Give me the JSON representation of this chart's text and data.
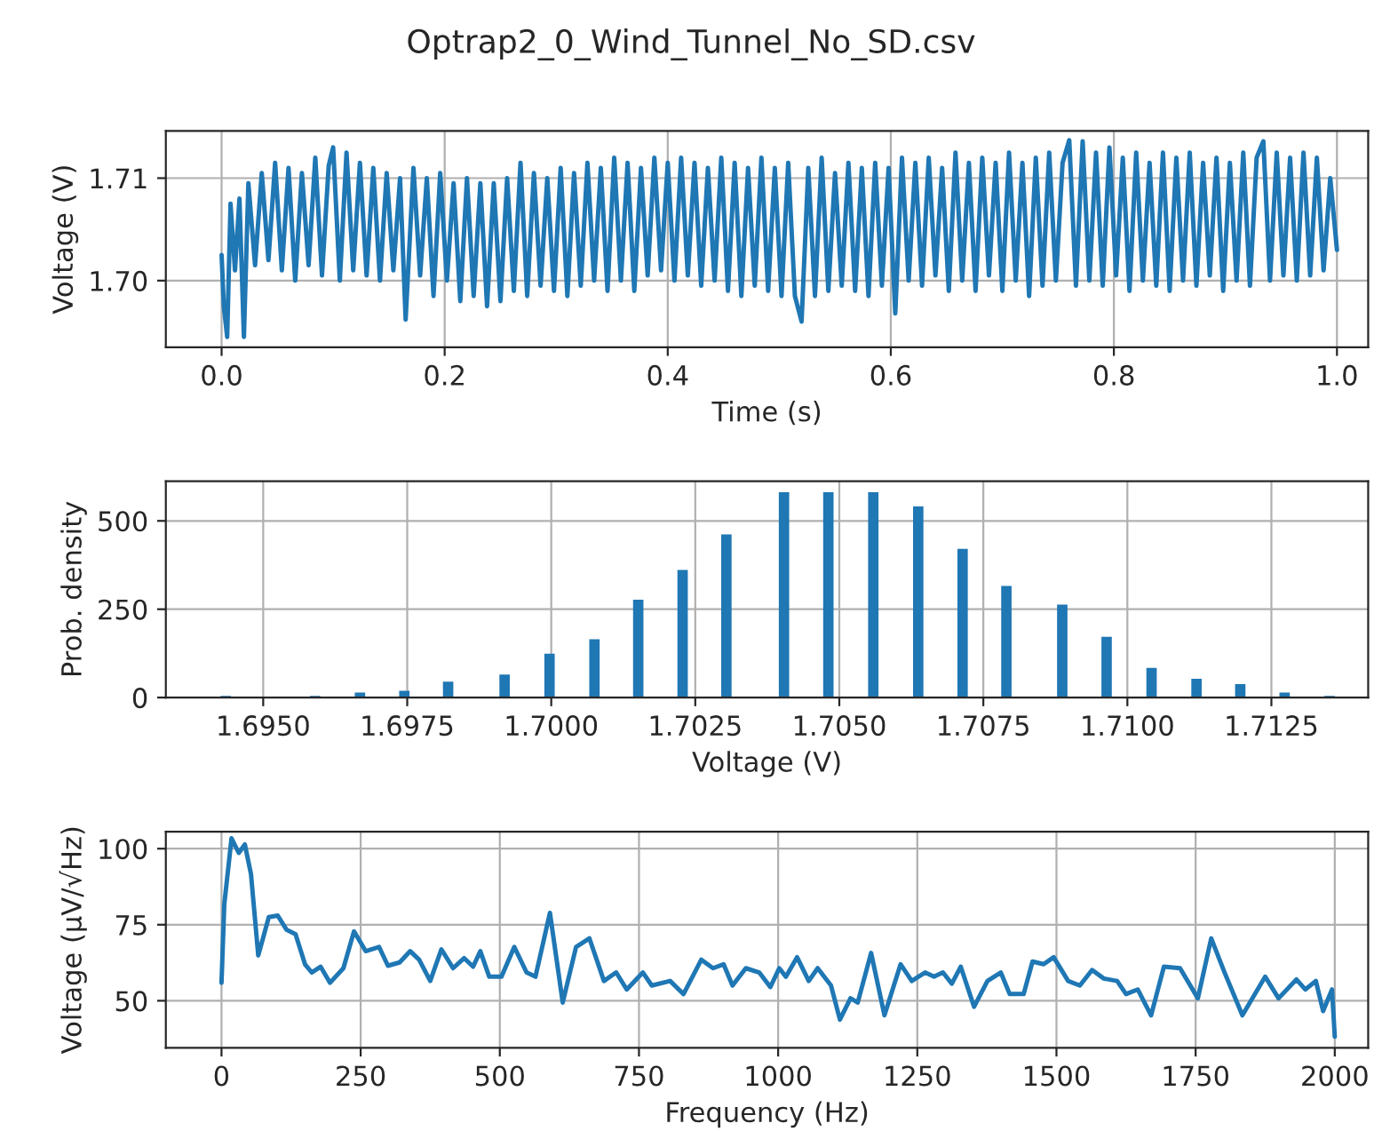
{
  "chart_data": [
    {
      "type": "line",
      "title": "Optrap2_0_Wind_Tunnel_No_SD.csv",
      "xlabel": "Time (s)",
      "ylabel": "Voltage (V)",
      "grid": true,
      "xlim": [
        -0.05,
        1.028
      ],
      "ylim": [
        1.6935,
        1.7146
      ],
      "xticks": [
        {
          "value": 0,
          "label": "0.0"
        },
        {
          "value": 0.2,
          "label": "0.2"
        },
        {
          "value": 0.4,
          "label": "0.4"
        },
        {
          "value": 0.6,
          "label": "0.6"
        },
        {
          "value": 0.8,
          "label": "0.8"
        },
        {
          "value": 1.0,
          "label": "1.0"
        }
      ],
      "yticks": [
        {
          "value": 1.7,
          "label": "1.70"
        },
        {
          "value": 1.71,
          "label": "1.71"
        }
      ],
      "series": [
        {
          "color": "#1f77b4",
          "x": [
            0,
            0.002,
            0.005,
            0.008,
            0.012,
            0.016,
            0.02,
            0.024,
            0.03,
            0.036,
            0.042,
            0.048,
            0.054,
            0.06,
            0.066,
            0.072,
            0.078,
            0.084,
            0.09,
            0.096,
            0.1,
            0.106,
            0.112,
            0.118,
            0.124,
            0.13,
            0.136,
            0.142,
            0.148,
            0.154,
            0.16,
            0.165,
            0.172,
            0.178,
            0.184,
            0.19,
            0.196,
            0.202,
            0.208,
            0.214,
            0.22,
            0.226,
            0.232,
            0.238,
            0.244,
            0.25,
            0.256,
            0.262,
            0.268,
            0.274,
            0.28,
            0.286,
            0.292,
            0.298,
            0.304,
            0.31,
            0.316,
            0.322,
            0.328,
            0.334,
            0.34,
            0.346,
            0.352,
            0.358,
            0.364,
            0.37,
            0.376,
            0.382,
            0.388,
            0.394,
            0.4,
            0.406,
            0.412,
            0.418,
            0.424,
            0.43,
            0.436,
            0.442,
            0.448,
            0.454,
            0.46,
            0.466,
            0.472,
            0.478,
            0.484,
            0.49,
            0.496,
            0.502,
            0.508,
            0.514,
            0.52,
            0.526,
            0.532,
            0.538,
            0.544,
            0.55,
            0.556,
            0.562,
            0.568,
            0.574,
            0.58,
            0.586,
            0.592,
            0.598,
            0.604,
            0.61,
            0.616,
            0.622,
            0.628,
            0.634,
            0.64,
            0.646,
            0.652,
            0.658,
            0.664,
            0.67,
            0.676,
            0.682,
            0.688,
            0.694,
            0.7,
            0.706,
            0.712,
            0.718,
            0.724,
            0.73,
            0.736,
            0.742,
            0.748,
            0.754,
            0.76,
            0.766,
            0.772,
            0.778,
            0.784,
            0.79,
            0.796,
            0.802,
            0.808,
            0.814,
            0.82,
            0.826,
            0.832,
            0.838,
            0.844,
            0.85,
            0.856,
            0.862,
            0.868,
            0.874,
            0.88,
            0.886,
            0.892,
            0.898,
            0.904,
            0.91,
            0.916,
            0.922,
            0.928,
            0.934,
            0.94,
            0.946,
            0.952,
            0.958,
            0.964,
            0.97,
            0.976,
            0.982,
            0.988,
            0.994,
            1.0
          ],
          "values": [
            1.7025,
            1.6975,
            1.6945,
            1.7075,
            1.701,
            1.708,
            1.6945,
            1.7095,
            1.7015,
            1.7105,
            1.702,
            1.7115,
            1.701,
            1.711,
            1.7,
            1.7105,
            1.7015,
            1.712,
            1.7005,
            1.7112,
            1.713,
            1.7,
            1.7125,
            1.701,
            1.7115,
            1.7005,
            1.711,
            1.7,
            1.7105,
            1.701,
            1.71,
            1.6962,
            1.711,
            1.7005,
            1.71,
            1.6985,
            1.7105,
            1.7,
            1.7095,
            1.698,
            1.71,
            1.6985,
            1.7095,
            1.6975,
            1.7095,
            1.698,
            1.71,
            1.699,
            1.7115,
            1.6985,
            1.7105,
            1.6995,
            1.71,
            1.699,
            1.711,
            1.6985,
            1.7105,
            1.6995,
            1.7115,
            1.7,
            1.711,
            1.699,
            1.712,
            1.7,
            1.7115,
            1.699,
            1.711,
            1.7005,
            1.712,
            1.701,
            1.7115,
            1.7,
            1.712,
            1.7005,
            1.7115,
            1.6995,
            1.711,
            1.7,
            1.712,
            1.699,
            1.7115,
            1.6985,
            1.711,
            1.6995,
            1.712,
            1.699,
            1.711,
            1.6985,
            1.7115,
            1.6985,
            1.696,
            1.711,
            1.6985,
            1.712,
            1.699,
            1.7105,
            1.6995,
            1.7115,
            1.699,
            1.711,
            1.6985,
            1.7115,
            1.6995,
            1.711,
            1.6968,
            1.712,
            1.7,
            1.7115,
            1.6995,
            1.712,
            1.7005,
            1.711,
            1.699,
            1.7125,
            1.7,
            1.7115,
            1.699,
            1.712,
            1.7005,
            1.7115,
            1.699,
            1.7125,
            1.7,
            1.7115,
            1.6985,
            1.712,
            1.6995,
            1.7125,
            1.7,
            1.7115,
            1.7137,
            1.6995,
            1.7136,
            1.7,
            1.7125,
            1.6995,
            1.713,
            1.7005,
            1.712,
            1.699,
            1.7125,
            1.7,
            1.7115,
            1.6995,
            1.7125,
            1.699,
            1.712,
            1.7,
            1.7125,
            1.6995,
            1.7115,
            1.7005,
            1.712,
            1.699,
            1.7115,
            1.7,
            1.7125,
            1.6995,
            1.712,
            1.7136,
            1.7,
            1.7125,
            1.7005,
            1.712,
            1.7,
            1.7125,
            1.7005,
            1.712,
            1.701,
            1.71,
            1.703
          ]
        }
      ]
    },
    {
      "type": "histogram",
      "xlabel": "Voltage (V)",
      "ylabel": "Prob. density",
      "grid": true,
      "xlim": [
        1.69331,
        1.71418
      ],
      "ylim": [
        0,
        612
      ],
      "xticks": [
        {
          "value": 1.695,
          "label": "1.6950"
        },
        {
          "value": 1.6975,
          "label": "1.6975"
        },
        {
          "value": 1.7,
          "label": "1.7000"
        },
        {
          "value": 1.7025,
          "label": "1.7025"
        },
        {
          "value": 1.705,
          "label": "1.7050"
        },
        {
          "value": 1.7075,
          "label": "1.7075"
        },
        {
          "value": 1.71,
          "label": "1.7100"
        },
        {
          "value": 1.7125,
          "label": "1.7125"
        }
      ],
      "yticks": [
        0,
        250,
        500
      ],
      "color": "#1f77b4",
      "bins": [
        1.69426,
        1.69444,
        1.69581,
        1.69599,
        1.69659,
        1.69677,
        1.69736,
        1.69754,
        1.69812,
        1.6983,
        1.6991,
        1.69928,
        1.69988,
        1.70006,
        1.70066,
        1.70084,
        1.70142,
        1.7016,
        1.70219,
        1.70237,
        1.70295,
        1.70313,
        1.70395,
        1.70413,
        1.70472,
        1.7049,
        1.7055,
        1.70568,
        1.70628,
        1.70646,
        1.70705,
        1.70723,
        1.70781,
        1.70799,
        1.70878,
        1.70896,
        1.70955,
        1.70973,
        1.71033,
        1.71051,
        1.71111,
        1.71129,
        1.71187,
        1.71205,
        1.71264,
        1.71282,
        1.71342,
        1.7136
      ],
      "values": [
        5,
        0,
        5,
        0,
        14,
        0,
        19,
        0,
        45,
        0,
        65,
        0,
        124,
        0,
        165,
        0,
        277,
        0,
        361,
        0,
        462,
        0,
        581,
        0,
        581,
        0,
        581,
        0,
        541,
        0,
        421,
        0,
        316,
        0,
        263,
        0,
        172,
        0,
        84,
        0,
        53,
        0,
        38,
        0,
        14,
        0,
        5
      ]
    },
    {
      "type": "line",
      "xlabel": "Frequency (Hz)",
      "ylabel": "Voltage (μV/√Hz)",
      "grid": true,
      "xlim": [
        -100,
        2060
      ],
      "ylim": [
        34.5,
        105.6
      ],
      "xticks": [
        0,
        250,
        500,
        750,
        1000,
        1250,
        1500,
        1750,
        2000
      ],
      "yticks": [
        50,
        75,
        100
      ],
      "series": [
        {
          "color": "#1f77b4",
          "x": [
            0,
            5,
            18,
            31,
            42,
            53,
            66,
            85,
            101,
            117,
            133,
            150,
            162,
            178,
            195,
            219,
            238,
            259,
            283,
            299,
            320,
            339,
            355,
            375,
            395,
            416,
            436,
            452,
            465,
            481,
            503,
            526,
            548,
            564,
            590,
            613,
            637,
            661,
            687,
            709,
            728,
            757,
            773,
            806,
            830,
            862,
            883,
            902,
            918,
            942,
            966,
            986,
            1002,
            1014,
            1034,
            1055,
            1071,
            1095,
            1111,
            1130,
            1143,
            1167,
            1191,
            1220,
            1240,
            1264,
            1280,
            1296,
            1312,
            1328,
            1352,
            1376,
            1400,
            1416,
            1441,
            1457,
            1477,
            1495,
            1521,
            1542,
            1564,
            1585,
            1609,
            1625,
            1646,
            1670,
            1693,
            1722,
            1754,
            1778,
            1802,
            1834,
            1875,
            1899,
            1931,
            1947,
            1966,
            1979,
            1995,
            2000
          ],
          "values": [
            55.9,
            81.7,
            103.4,
            98.6,
            101.4,
            91.6,
            64.9,
            77.5,
            78,
            73.3,
            71.9,
            62,
            59.3,
            61.2,
            55.9,
            60.7,
            72.8,
            66.3,
            67.7,
            61.5,
            62.6,
            66.3,
            63.5,
            56.5,
            66.9,
            60.7,
            64,
            61.2,
            66.3,
            57.9,
            57.9,
            67.7,
            59.3,
            57.9,
            78.9,
            49.4,
            67.7,
            70.5,
            56.5,
            59.3,
            53.7,
            59.3,
            55,
            56.5,
            52.2,
            63.5,
            60.7,
            62,
            55,
            60.7,
            59.3,
            54.5,
            60.7,
            57.9,
            64.3,
            56.5,
            60.7,
            55,
            43.8,
            50.8,
            49.4,
            65.7,
            45.2,
            62,
            56.5,
            59.3,
            57.9,
            59.3,
            55.6,
            61.2,
            48,
            56.5,
            59.3,
            52.2,
            52.2,
            62.9,
            62,
            64.3,
            56.5,
            55,
            60.1,
            57.3,
            56.5,
            52.2,
            53.7,
            45.2,
            61.2,
            60.7,
            50.8,
            70.5,
            59.3,
            45.2,
            57.9,
            50.8,
            57,
            53.7,
            56.5,
            46.6,
            53.7,
            38.2
          ]
        }
      ]
    }
  ]
}
